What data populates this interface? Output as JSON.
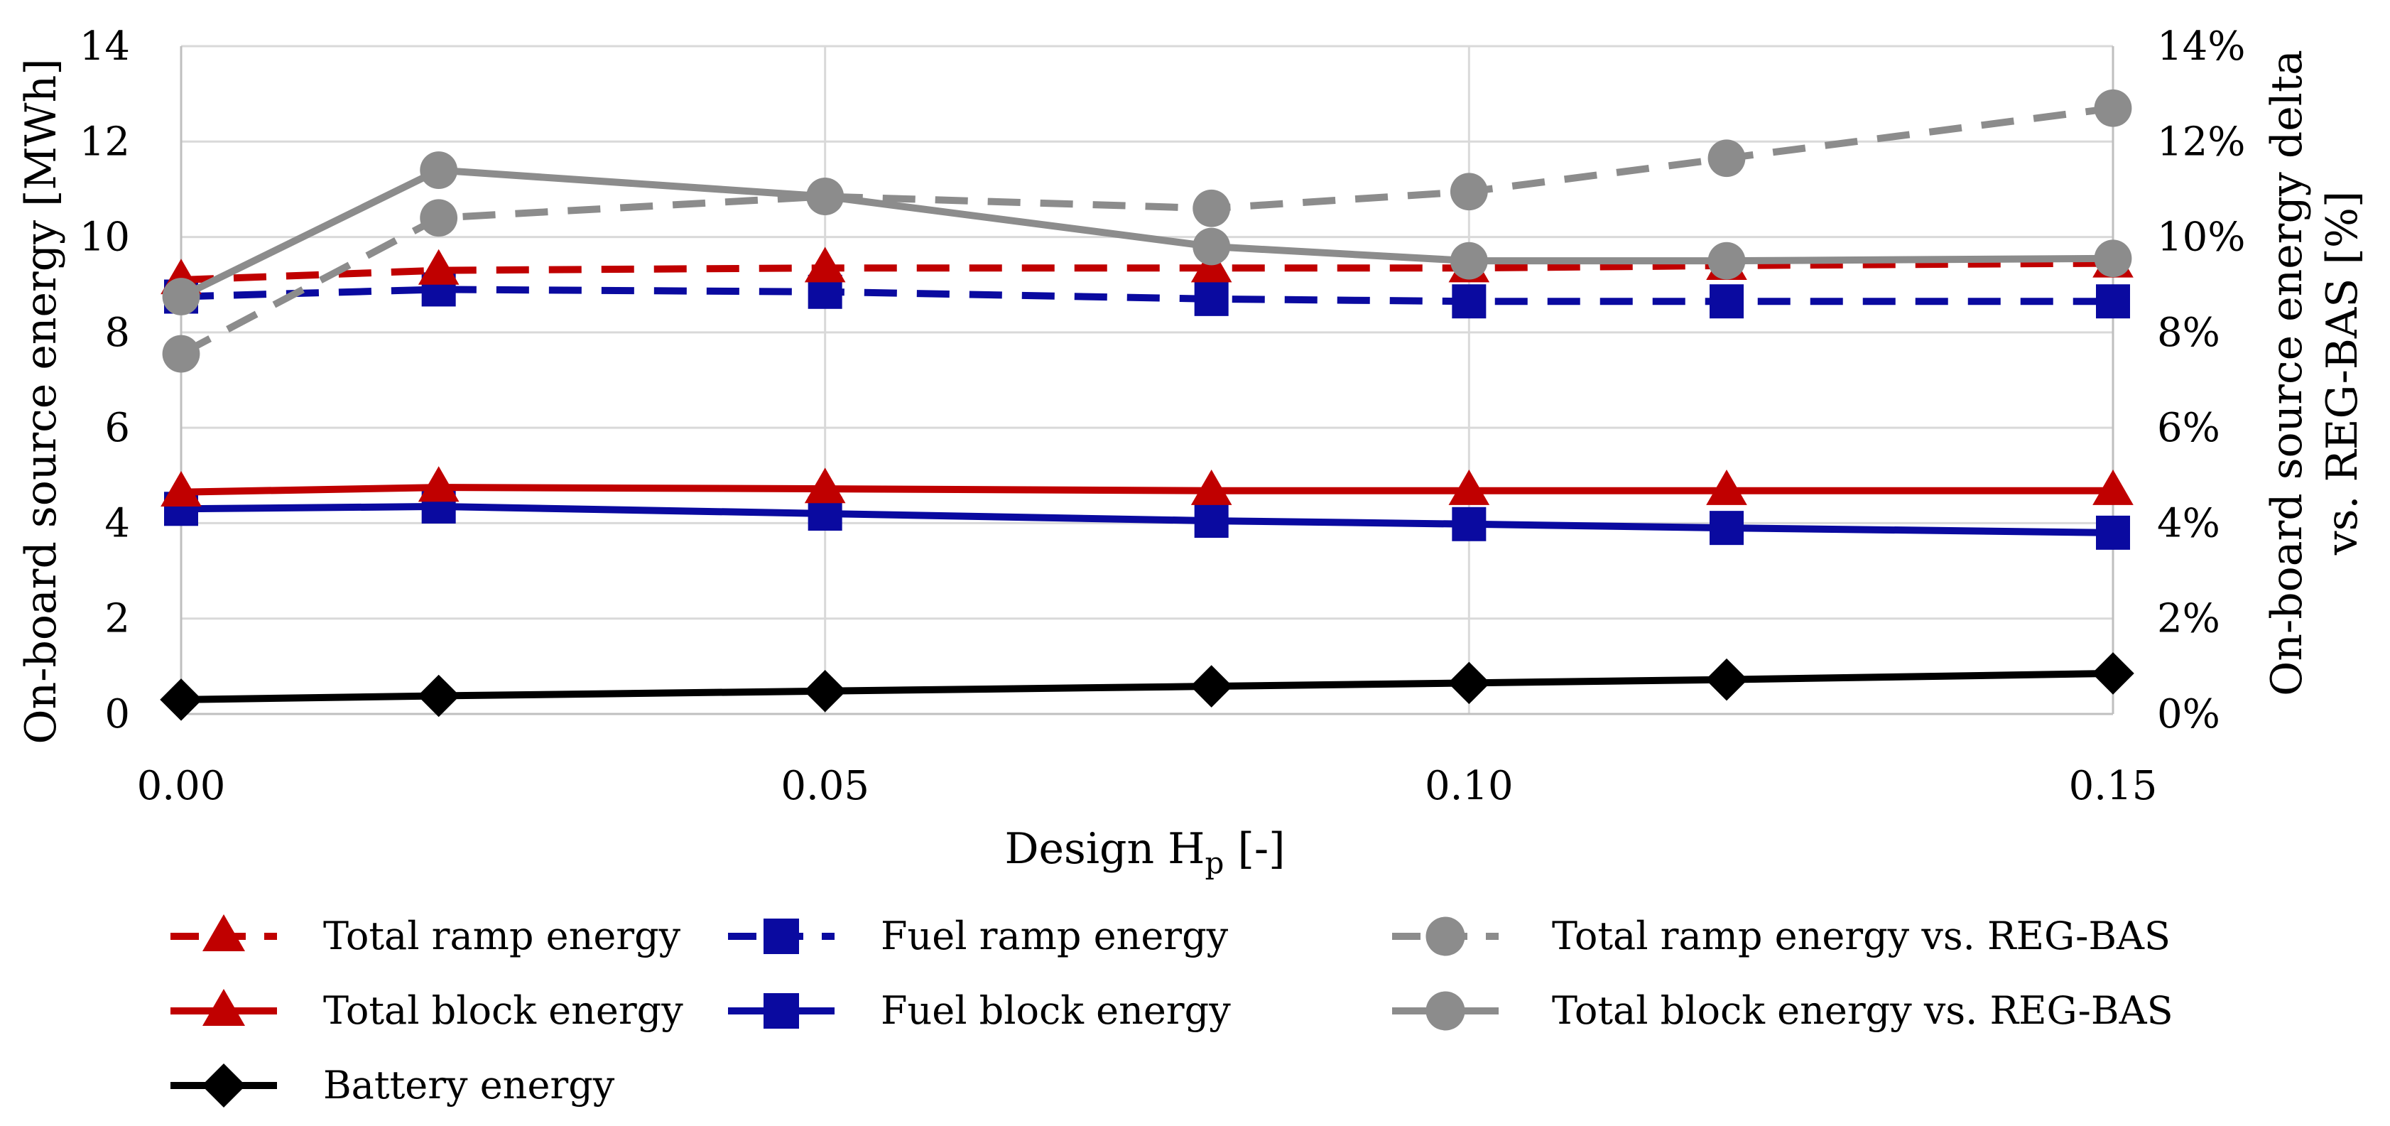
{
  "chart_data": {
    "type": "line",
    "xlabel": "Design H",
    "xlabel_sub": "p",
    "xlabel_suffix": " [-]",
    "ylabel_left": "On-board source energy [MWh]",
    "ylabel_right_line1": "On-board source energy delta",
    "ylabel_right_line2": "vs. REG-BAS [%]",
    "x": [
      0.0,
      0.02,
      0.05,
      0.08,
      0.1,
      0.12,
      0.15
    ],
    "xlim": [
      0.0,
      0.15
    ],
    "x_ticks": [
      0.0,
      0.05,
      0.1,
      0.15
    ],
    "x_tick_labels": [
      "0.00",
      "0.05",
      "0.10",
      "0.15"
    ],
    "x_gridlines": [
      0.05,
      0.1
    ],
    "ylim_left": [
      0,
      14
    ],
    "y_ticks_left": [
      0,
      2,
      4,
      6,
      8,
      10,
      12,
      14
    ],
    "y_tick_labels_left": [
      "0",
      "2",
      "4",
      "6",
      "8",
      "10",
      "12",
      "14"
    ],
    "ylim_right": [
      0,
      14
    ],
    "y_ticks_right": [
      0,
      2,
      4,
      6,
      8,
      10,
      12,
      14
    ],
    "y_tick_labels_right": [
      "0%",
      "2%",
      "4%",
      "6%",
      "8%",
      "10%",
      "12%",
      "14%"
    ],
    "series": [
      {
        "name": "Total ramp energy",
        "axis": "left",
        "color": "#c00000",
        "dash": true,
        "marker": "triangle",
        "values": [
          9.1,
          9.3,
          9.35,
          9.35,
          9.35,
          9.4,
          9.45
        ]
      },
      {
        "name": "Fuel ramp energy",
        "axis": "left",
        "color": "#0a0aa0",
        "dash": true,
        "marker": "square",
        "values": [
          8.75,
          8.9,
          8.85,
          8.7,
          8.65,
          8.65,
          8.65
        ]
      },
      {
        "name": "Total ramp energy vs. REG-BAS",
        "axis": "right",
        "color": "#8c8c8c",
        "dash": true,
        "marker": "circle",
        "values": [
          7.55,
          10.4,
          10.85,
          10.6,
          10.95,
          11.65,
          12.7
        ]
      },
      {
        "name": "Total block energy",
        "axis": "left",
        "color": "#c00000",
        "dash": false,
        "marker": "triangle",
        "values": [
          4.65,
          4.75,
          4.72,
          4.68,
          4.68,
          4.68,
          4.68
        ]
      },
      {
        "name": "Fuel block energy",
        "axis": "left",
        "color": "#0a0aa0",
        "dash": false,
        "marker": "square",
        "values": [
          4.3,
          4.35,
          4.2,
          4.05,
          3.98,
          3.9,
          3.8
        ]
      },
      {
        "name": "Total block energy vs. REG-BAS",
        "axis": "right",
        "color": "#8c8c8c",
        "dash": false,
        "marker": "circle",
        "values": [
          8.75,
          11.4,
          10.85,
          9.8,
          9.5,
          9.5,
          9.55
        ]
      },
      {
        "name": "Battery energy",
        "axis": "left",
        "color": "#000000",
        "dash": false,
        "marker": "diamond",
        "values": [
          0.3,
          0.38,
          0.48,
          0.58,
          0.65,
          0.72,
          0.85
        ]
      }
    ]
  }
}
